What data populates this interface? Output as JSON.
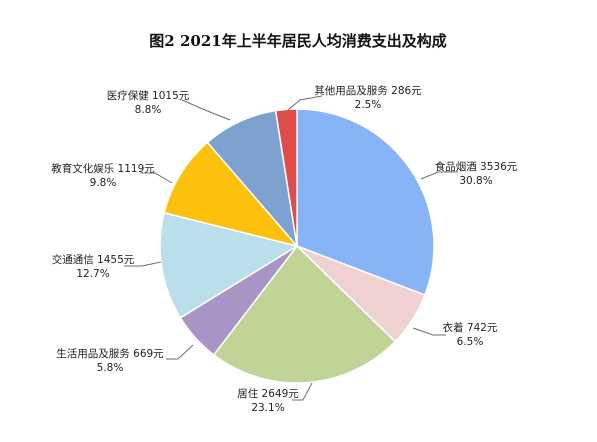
{
  "chart_data": {
    "type": "pie",
    "title": "图2    2021年上半年居民人均消费支出及构成",
    "slices": [
      {
        "name": "食品烟酒",
        "value": 3536,
        "unit": "元",
        "percent": "30.8%",
        "color": "#86b4f6"
      },
      {
        "name": "衣着",
        "value": 742,
        "unit": "元",
        "percent": "6.5%",
        "color": "#f0d2d2"
      },
      {
        "name": "居住",
        "value": 2649,
        "unit": "元",
        "percent": "23.1%",
        "color": "#c0d497"
      },
      {
        "name": "生活用品及服务",
        "value": 669,
        "unit": "元",
        "percent": "5.8%",
        "color": "#a994c6"
      },
      {
        "name": "交通通信",
        "value": 1455,
        "unit": "元",
        "percent": "12.7%",
        "color": "#b9e0ea"
      },
      {
        "name": "教育文化娱乐",
        "value": 1119,
        "unit": "元",
        "percent": "9.8%",
        "color": "#fcc10c"
      },
      {
        "name": "医疗保健",
        "value": 1015,
        "unit": "元",
        "percent": "8.8%",
        "color": "#7ea1cf"
      },
      {
        "name": "其他用品及服务",
        "value": 286,
        "unit": "元",
        "percent": "2.5%",
        "color": "#e04c4c"
      }
    ]
  }
}
